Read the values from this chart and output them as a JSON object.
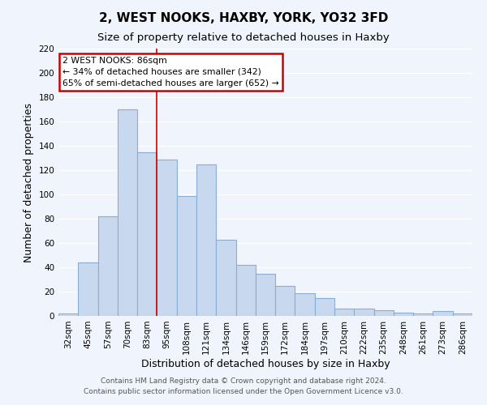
{
  "title": "2, WEST NOOKS, HAXBY, YORK, YO32 3FD",
  "subtitle": "Size of property relative to detached houses in Haxby",
  "xlabel": "Distribution of detached houses by size in Haxby",
  "ylabel": "Number of detached properties",
  "bar_labels": [
    "32sqm",
    "45sqm",
    "57sqm",
    "70sqm",
    "83sqm",
    "95sqm",
    "108sqm",
    "121sqm",
    "134sqm",
    "146sqm",
    "159sqm",
    "172sqm",
    "184sqm",
    "197sqm",
    "210sqm",
    "222sqm",
    "235sqm",
    "248sqm",
    "261sqm",
    "273sqm",
    "286sqm"
  ],
  "bar_values": [
    2,
    44,
    82,
    170,
    135,
    129,
    99,
    125,
    63,
    42,
    35,
    25,
    19,
    15,
    6,
    6,
    5,
    3,
    2,
    4,
    2
  ],
  "bar_color": "#c8d8ee",
  "bar_edge_color": "#8aadd4",
  "annotation_title": "2 WEST NOOKS: 86sqm",
  "annotation_line1": "← 34% of detached houses are smaller (342)",
  "annotation_line2": "65% of semi-detached houses are larger (652) →",
  "annotation_box_color": "#ffffff",
  "annotation_box_edge": "#cc0000",
  "vline_color": "#cc0000",
  "ylim": [
    0,
    220
  ],
  "yticks": [
    0,
    20,
    40,
    60,
    80,
    100,
    120,
    140,
    160,
    180,
    200,
    220
  ],
  "footer1": "Contains HM Land Registry data © Crown copyright and database right 2024.",
  "footer2": "Contains public sector information licensed under the Open Government Licence v3.0.",
  "bg_color": "#f0f4fc",
  "plot_bg_color": "#f0f4fc",
  "grid_color": "#ffffff",
  "title_fontsize": 11,
  "subtitle_fontsize": 9.5,
  "axis_label_fontsize": 9,
  "tick_fontsize": 7.5,
  "footer_fontsize": 6.5
}
